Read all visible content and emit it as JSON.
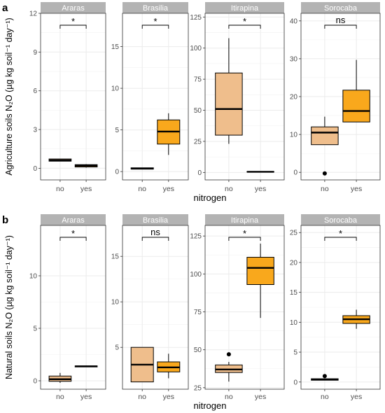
{
  "colors": {
    "no": "#efbe8c",
    "yes": "#f9a81c",
    "strip": "#b3b3b3",
    "grid": "#ebebeb",
    "frame": "#333333"
  },
  "chart_data": [
    {
      "type": "boxplot",
      "panel_label": "a",
      "ylabel": "Agriculture soils N₂O (µg kg soil⁻¹ day⁻¹)",
      "xlabel": "nitrogen",
      "categories": [
        "no",
        "yes"
      ],
      "facets": [
        {
          "name": "Araras",
          "ylim": [
            -0.9,
            12
          ],
          "yticks": [
            0,
            3,
            6,
            9,
            12
          ],
          "sig": "*",
          "boxes": [
            {
              "group": "no",
              "lower": 0.55,
              "q1": 0.55,
              "median": 0.62,
              "q3": 0.72,
              "upper": 0.72,
              "outliers": []
            },
            {
              "group": "yes",
              "lower": 0.05,
              "q1": 0.1,
              "median": 0.2,
              "q3": 0.28,
              "upper": 0.32,
              "outliers": []
            }
          ]
        },
        {
          "name": "Brasilia",
          "ylim": [
            -1,
            19
          ],
          "yticks": [
            0,
            5,
            10,
            15
          ],
          "sig": "*",
          "boxes": [
            {
              "group": "no",
              "lower": 0.3,
              "q1": 0.3,
              "median": 0.35,
              "q3": 0.45,
              "upper": 0.45,
              "outliers": []
            },
            {
              "group": "yes",
              "lower": 2,
              "q1": 3.3,
              "median": 4.8,
              "q3": 6.2,
              "upper": 7,
              "outliers": []
            }
          ]
        },
        {
          "name": "Itirapina",
          "ylim": [
            -6,
            128
          ],
          "yticks": [
            0,
            25,
            50,
            75,
            100,
            125
          ],
          "sig": "*",
          "boxes": [
            {
              "group": "no",
              "lower": 23,
              "q1": 30,
              "median": 51,
              "q3": 80,
              "upper": 108,
              "outliers": []
            },
            {
              "group": "yes",
              "lower": 0.2,
              "q1": 0.3,
              "median": 0.5,
              "q3": 0.7,
              "upper": 0.8,
              "outliers": []
            }
          ]
        },
        {
          "name": "Sorocaba",
          "ylim": [
            -2,
            42
          ],
          "yticks": [
            0,
            10,
            20,
            30,
            40
          ],
          "sig": "ns",
          "boxes": [
            {
              "group": "no",
              "lower": 7.3,
              "q1": 7.3,
              "median": 10.5,
              "q3": 12,
              "upper": 14.7,
              "outliers": [
                -0.3
              ]
            },
            {
              "group": "yes",
              "lower": 13.3,
              "q1": 13.3,
              "median": 16.2,
              "q3": 21.7,
              "upper": 29.7,
              "outliers": []
            }
          ]
        }
      ]
    },
    {
      "type": "boxplot",
      "panel_label": "b",
      "ylabel": "Natural soils N₂O (µg kg soil⁻¹ day⁻¹)",
      "xlabel": "nitrogen",
      "categories": [
        "no",
        "yes"
      ],
      "facets": [
        {
          "name": "Araras",
          "ylim": [
            -0.8,
            14.8
          ],
          "yticks": [
            0,
            5,
            10
          ],
          "sig": "*",
          "boxes": [
            {
              "group": "no",
              "lower": -0.2,
              "q1": -0.05,
              "median": 0.15,
              "q3": 0.45,
              "upper": 0.75,
              "outliers": []
            },
            {
              "group": "yes",
              "lower": 1.3,
              "q1": 1.32,
              "median": 1.38,
              "q3": 1.42,
              "upper": 1.45,
              "outliers": []
            }
          ]
        },
        {
          "name": "Brasilia",
          "ylim": [
            0.4,
            18.4
          ],
          "yticks": [
            5,
            10,
            15
          ],
          "sig": "ns",
          "boxes": [
            {
              "group": "no",
              "lower": 1.2,
              "q1": 1.2,
              "median": 3.1,
              "q3": 5,
              "upper": 5,
              "outliers": []
            },
            {
              "group": "yes",
              "lower": 1.6,
              "q1": 2.3,
              "median": 2.8,
              "q3": 3.4,
              "upper": 4.3,
              "outliers": []
            }
          ]
        },
        {
          "name": "Itirapina",
          "ylim": [
            24,
            132
          ],
          "yticks": [
            25,
            50,
            75,
            100,
            125
          ],
          "sig": "*",
          "boxes": [
            {
              "group": "no",
              "lower": 29,
              "q1": 35,
              "median": 37,
              "q3": 40,
              "upper": 42,
              "outliers": [
                47
              ]
            },
            {
              "group": "yes",
              "lower": 71,
              "q1": 93,
              "median": 104,
              "q3": 111,
              "upper": 120,
              "outliers": []
            }
          ]
        },
        {
          "name": "Sorocaba",
          "ylim": [
            -1.2,
            26.2
          ],
          "yticks": [
            0,
            5,
            10,
            15,
            20,
            25
          ],
          "sig": "*",
          "boxes": [
            {
              "group": "no",
              "lower": 0.3,
              "q1": 0.3,
              "median": 0.4,
              "q3": 0.55,
              "upper": 0.6,
              "outliers": [
                1
              ]
            },
            {
              "group": "yes",
              "lower": 8.9,
              "q1": 9.8,
              "median": 10.5,
              "q3": 11.1,
              "upper": 12.1,
              "outliers": []
            }
          ]
        }
      ]
    }
  ]
}
